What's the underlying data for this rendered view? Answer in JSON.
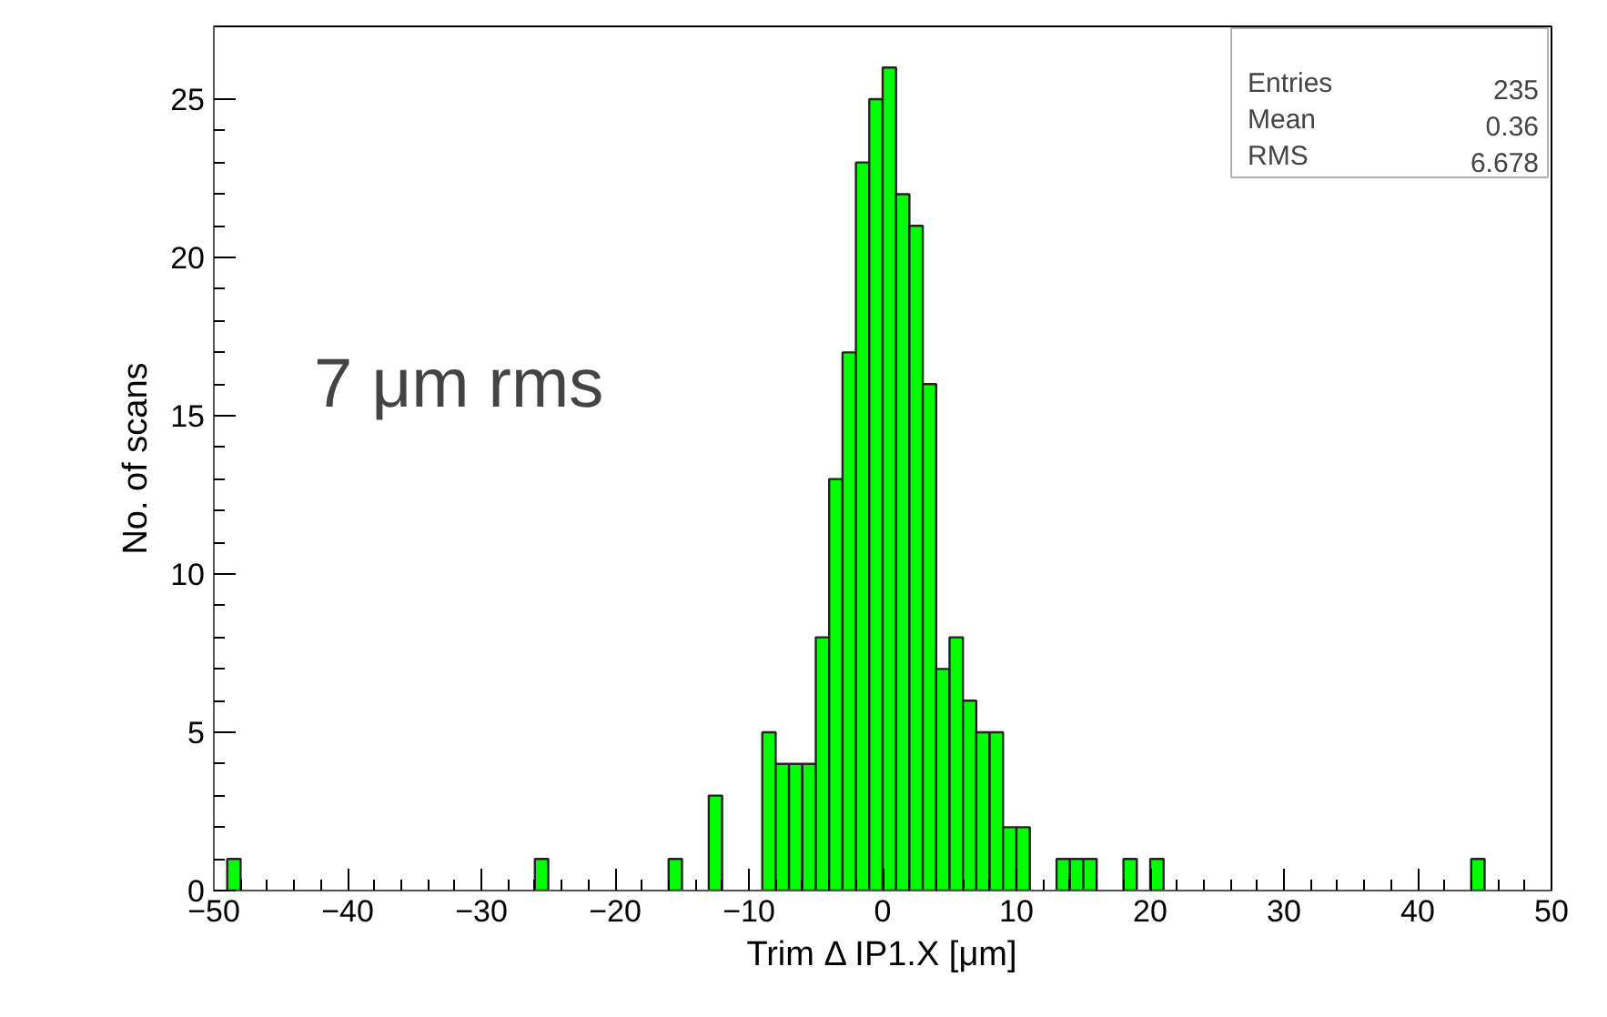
{
  "chart_data": {
    "type": "histogram",
    "xlabel": "Trim Δ IP1.X [μm]",
    "ylabel": "No. of scans",
    "bins": [
      -50,
      -49,
      -48,
      -47,
      -46,
      -45,
      -44,
      -43,
      -42,
      -41,
      -40,
      -39,
      -38,
      -37,
      -36,
      -35,
      -34,
      -33,
      -32,
      -31,
      -30,
      -29,
      -28,
      -27,
      -26,
      -25,
      -24,
      -23,
      -22,
      -21,
      -20,
      -19,
      -18,
      -17,
      -16,
      -15,
      -14,
      -13,
      -12,
      -11,
      -10,
      -9,
      -8,
      -7,
      -6,
      -5,
      -4,
      -3,
      -2,
      -1,
      0,
      1,
      2,
      3,
      4,
      5,
      6,
      7,
      8,
      9,
      10,
      11,
      12,
      13,
      14,
      15,
      16,
      17,
      18,
      19,
      20,
      21,
      22,
      23,
      24,
      25,
      26,
      27,
      28,
      29,
      30,
      31,
      32,
      33,
      34,
      35,
      36,
      37,
      38,
      39,
      40,
      41,
      42,
      43,
      44,
      45,
      46,
      47,
      48,
      49,
      50
    ],
    "values": [
      0,
      1,
      0,
      0,
      0,
      0,
      0,
      0,
      0,
      0,
      0,
      0,
      0,
      0,
      0,
      0,
      0,
      0,
      0,
      0,
      0,
      0,
      0,
      0,
      1,
      0,
      0,
      0,
      0,
      0,
      0,
      0,
      0,
      0,
      1,
      0,
      0,
      3,
      0,
      0,
      0,
      5,
      4,
      4,
      4,
      8,
      13,
      17,
      23,
      25,
      26,
      22,
      21,
      16,
      7,
      8,
      6,
      5,
      5,
      2,
      2,
      0,
      0,
      1,
      1,
      1,
      0,
      0,
      1,
      0,
      1,
      0,
      0,
      0,
      0,
      0,
      0,
      0,
      0,
      0,
      0,
      0,
      0,
      0,
      0,
      0,
      0,
      0,
      0,
      0,
      0,
      0,
      0,
      0,
      1,
      0,
      0,
      0,
      0,
      0
    ],
    "color": "#00ff00",
    "xlim": [
      -50,
      50
    ],
    "ylim": [
      0,
      27.3
    ],
    "xticks": [
      -50,
      -40,
      -30,
      -20,
      -10,
      0,
      10,
      20,
      30,
      40,
      50
    ],
    "yticks": [
      0,
      5,
      10,
      15,
      20,
      25
    ],
    "grid": false,
    "annotations": [
      "Entries",
      "235",
      "Mean",
      "0.36",
      "RMS",
      "6.678",
      "7 μm rms"
    ]
  }
}
